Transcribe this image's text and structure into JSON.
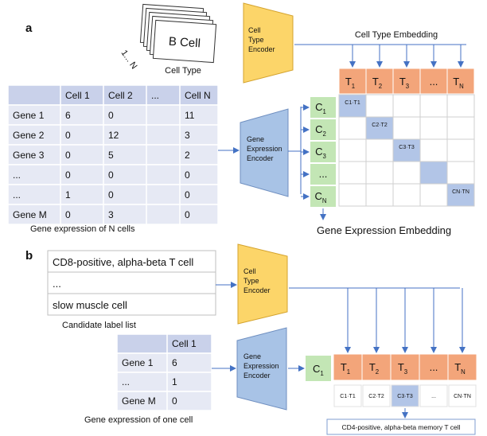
{
  "panel_a": {
    "label": "a",
    "cell_cards_count_label": "1... N",
    "b_cell_card": "B Cell",
    "cell_type_caption": "Cell Type",
    "cell_type_encoder_lines": [
      "Cell",
      "Type",
      "Encoder"
    ],
    "cell_type_embedding_label": "Cell Type Embedding",
    "t_tokens": [
      {
        "base": "T",
        "sub": "1"
      },
      {
        "base": "T",
        "sub": "2"
      },
      {
        "base": "T",
        "sub": "3"
      },
      {
        "base": "...",
        "sub": ""
      },
      {
        "base": "T",
        "sub": "N"
      }
    ],
    "table": {
      "headers": [
        "",
        "Cell 1",
        "Cell 2",
        "...",
        "Cell N"
      ],
      "rows": [
        [
          "Gene 1",
          "6",
          "0",
          "",
          "11"
        ],
        [
          "Gene 2",
          "0",
          "12",
          "",
          "3"
        ],
        [
          "Gene 3",
          "0",
          "5",
          "",
          "2"
        ],
        [
          "...",
          "0",
          "0",
          "",
          "0"
        ],
        [
          "...",
          "1",
          "0",
          "",
          "0"
        ],
        [
          "Gene M",
          "0",
          "3",
          "",
          "0"
        ]
      ]
    },
    "table_caption": "Gene expression of N cells",
    "gene_encoder_lines": [
      "Gene",
      "Expression",
      "Encoder"
    ],
    "c_tokens": [
      {
        "base": "C",
        "sub": "1"
      },
      {
        "base": "C",
        "sub": "2"
      },
      {
        "base": "C",
        "sub": "3"
      },
      {
        "base": "...",
        "sub": ""
      },
      {
        "base": "C",
        "sub": "N"
      }
    ],
    "diag_products": [
      "C1·T1",
      "C2·T2",
      "C3·T3",
      "",
      "CN·TN"
    ],
    "gene_embedding_label": "Gene Expression Embedding"
  },
  "panel_b": {
    "label": "b",
    "candidates": [
      "CD8-positive, alpha-beta T cell",
      "...",
      "slow muscle cell"
    ],
    "candidates_caption": "Candidate label list",
    "cell_type_encoder_lines": [
      "Cell",
      "Type",
      "Encoder"
    ],
    "table": {
      "headers": [
        "",
        "Cell 1"
      ],
      "rows": [
        [
          "Gene 1",
          "6"
        ],
        [
          "...",
          "1"
        ],
        [
          "Gene M",
          "0"
        ]
      ]
    },
    "table_caption": "Gene expression of one cell",
    "gene_encoder_lines": [
      "Gene",
      "Expression",
      "Encoder"
    ],
    "c_token": {
      "base": "C",
      "sub": "1"
    },
    "t_tokens": [
      {
        "base": "T",
        "sub": "1"
      },
      {
        "base": "T",
        "sub": "2"
      },
      {
        "base": "T",
        "sub": "3"
      },
      {
        "base": "...",
        "sub": ""
      },
      {
        "base": "T",
        "sub": "N"
      }
    ],
    "products": [
      "C1·T1",
      "C2·T2",
      "C3·T3",
      "...",
      "CN·TN"
    ],
    "result": "CD4-positive, alpha-beta memory T cell"
  },
  "colors": {
    "encoder_yellow": "#fcd569",
    "encoder_blue": "#a8c3e6",
    "t_orange": "#f3a57a",
    "c_green": "#c3e6b5",
    "table_header": "#c9d1ea",
    "table_row": "#e6e9f4",
    "highlight": "#b2c5e7",
    "arrow": "#4472c4"
  }
}
